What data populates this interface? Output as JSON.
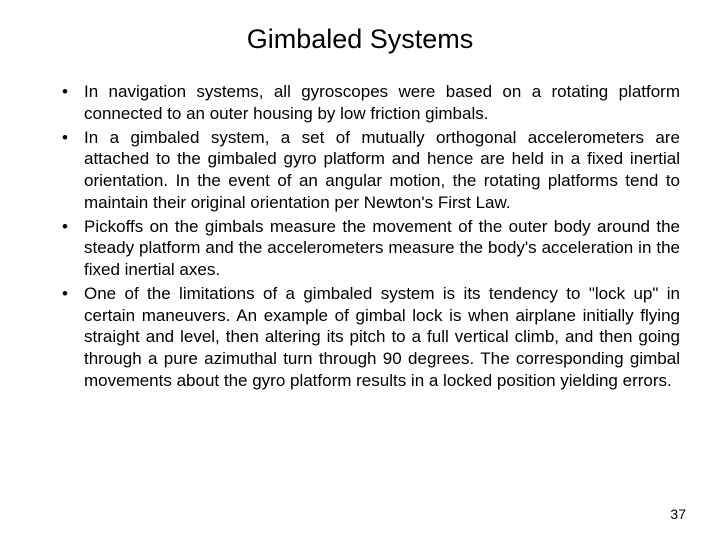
{
  "slide": {
    "title": "Gimbaled Systems",
    "bullets": [
      "In navigation systems, all gyroscopes were based on a rotating platform connected to an outer housing by low friction gimbals.",
      "In a gimbaled system, a set of mutually orthogonal accelerometers are attached to the gimbaled gyro platform and hence are held in a fixed inertial orientation. In the event of an angular motion, the rotating platforms tend to maintain their original orientation per Newton's First Law.",
      "Pickoffs on the gimbals measure the movement of the outer body around the steady platform and the accelerometers measure the body's acceleration in the fixed inertial axes.",
      "One of the limitations of a gimbaled system is its tendency to \"lock up\" in certain maneuvers. An example of gimbal lock is when airplane initially flying straight and level, then altering its pitch to a full vertical climb, and then going through a pure azimuthal turn through 90 degrees. The corresponding gimbal movements about the gyro platform results in a locked position yielding errors."
    ],
    "page_number": "37"
  },
  "style": {
    "background_color": "#ffffff",
    "text_color": "#000000",
    "title_fontsize": 27,
    "body_fontsize": 17,
    "pagenum_fontsize": 14,
    "font_family": "Arial"
  }
}
